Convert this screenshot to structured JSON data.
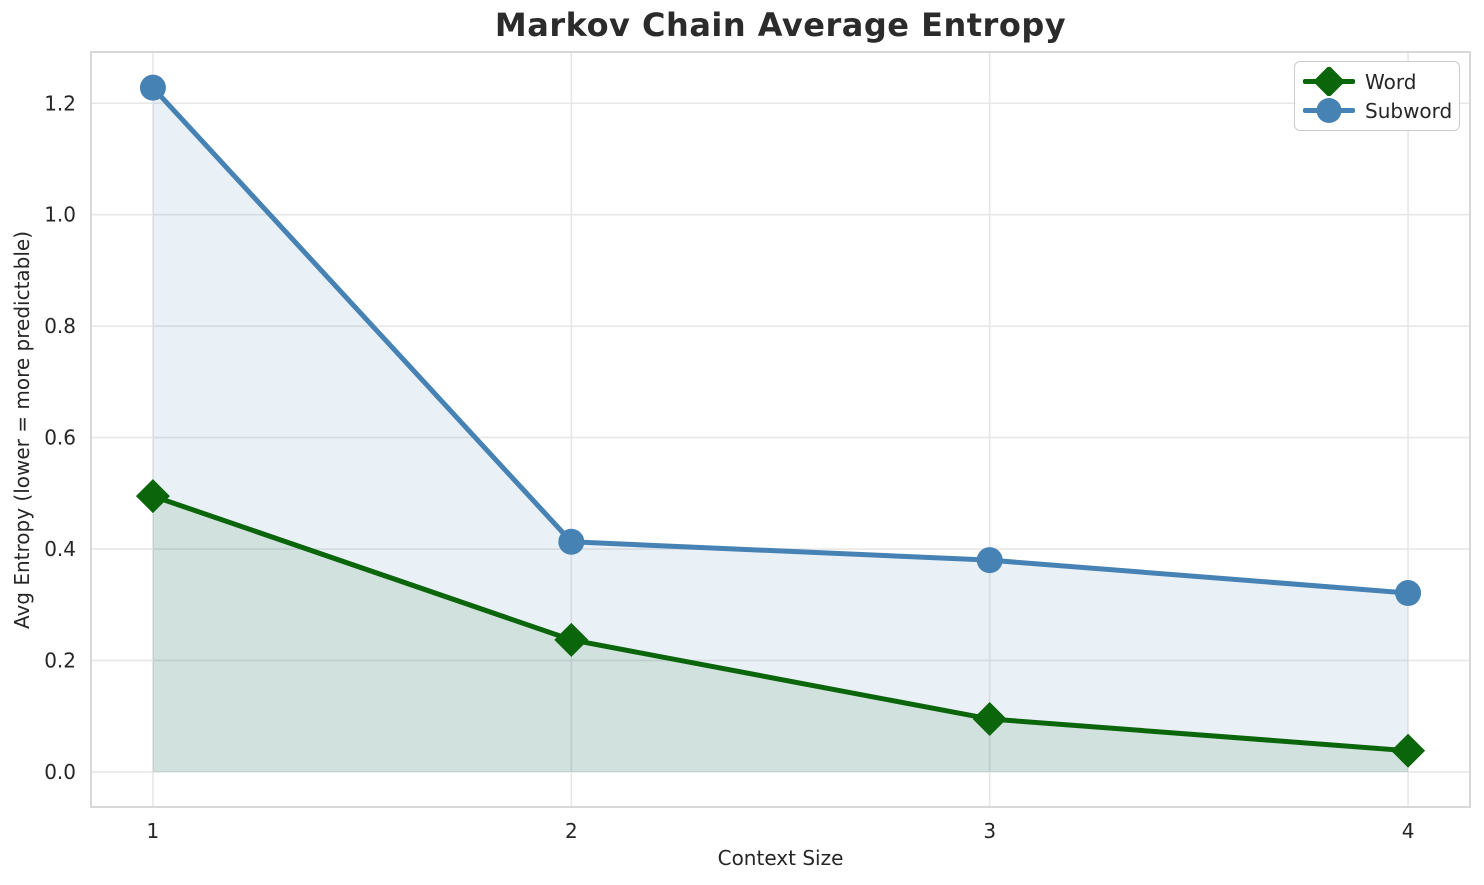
{
  "figure": {
    "title": "Markov Chain Average Entropy"
  },
  "chart_data": {
    "type": "line",
    "title": "Markov Chain Average Entropy",
    "xlabel": "Context Size",
    "ylabel": "Avg Entropy (lower = more predictable)",
    "x": [
      1,
      2,
      3,
      4
    ],
    "series": [
      {
        "name": "Word",
        "values": [
          0.495,
          0.237,
          0.095,
          0.038
        ],
        "color": "#0b660b",
        "marker": "diamond",
        "fill_to_zero": true,
        "fill_color": "rgba(11, 102, 11, 0.11)"
      },
      {
        "name": "Subword",
        "values": [
          1.228,
          0.413,
          0.38,
          0.321
        ],
        "color": "#4682b4",
        "marker": "circle",
        "fill_to_zero": true,
        "fill_color": "rgba(70, 130, 180, 0.12)"
      }
    ],
    "xticks": [
      1,
      2,
      3,
      4
    ],
    "yticks": [
      0.0,
      0.2,
      0.4,
      0.6,
      0.8,
      1.0,
      1.2
    ],
    "xlim": [
      0.852,
      4.148
    ],
    "ylim": [
      -0.063,
      1.292
    ],
    "grid": true,
    "legend_position": "upper right"
  },
  "style": {
    "grid_color": "#e7e7e7",
    "spine_color": "#d8d8d8",
    "text_color": "#262626",
    "title_color": "#2b2b2b",
    "background": "#ffffff",
    "word_color": "#0b660b",
    "subword_color": "#4682b4"
  }
}
